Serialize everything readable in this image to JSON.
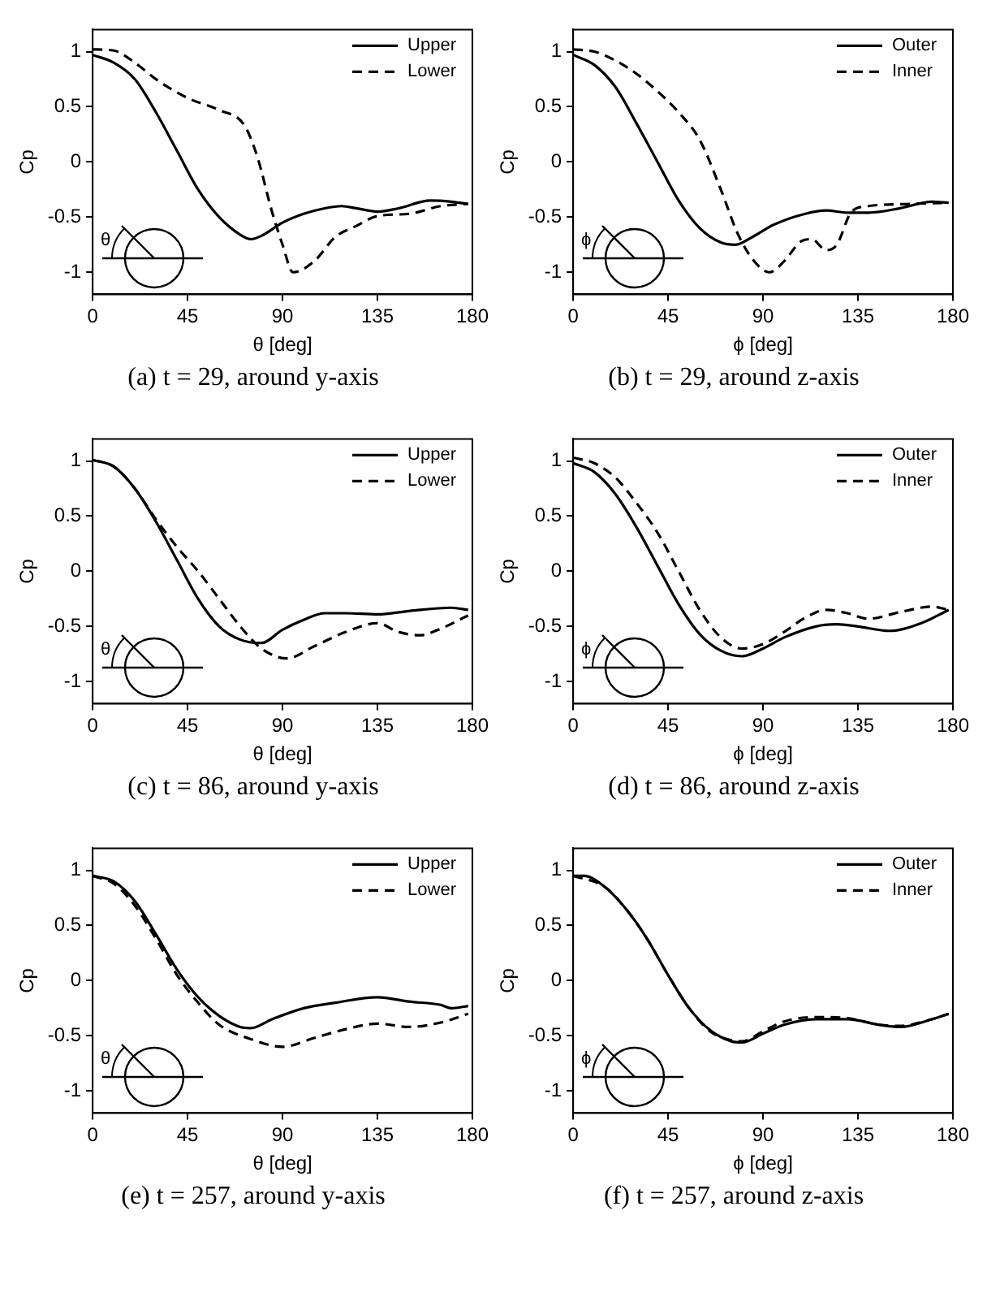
{
  "chart_data": [
    {
      "type": "line",
      "xlabel": "θ [deg]",
      "ylabel": "Cp",
      "xlim": [
        0,
        180
      ],
      "ylim": [
        -1.2,
        1.2
      ],
      "xticks": [
        0,
        45,
        90,
        135,
        180
      ],
      "yticks": [
        -1,
        -0.5,
        0,
        0.5,
        1
      ],
      "legend": "top right",
      "annotations": [
        "(a)  t = 29,  around y-axis",
        "θ"
      ],
      "series": [
        {
          "name": "Upper",
          "color": "#000000",
          "line_style": "solid",
          "x": [
            0,
            10,
            20,
            30,
            40,
            50,
            60,
            70,
            75,
            80,
            90,
            100,
            110,
            118,
            125,
            135,
            145,
            160,
            170,
            178
          ],
          "values": [
            0.97,
            0.9,
            0.75,
            0.45,
            0.1,
            -0.25,
            -0.5,
            -0.66,
            -0.7,
            -0.67,
            -0.55,
            -0.47,
            -0.42,
            -0.4,
            -0.42,
            -0.45,
            -0.42,
            -0.35,
            -0.36,
            -0.38
          ]
        },
        {
          "name": "Lower",
          "color": "#000000",
          "line_style": "dashed",
          "x": [
            0,
            10,
            20,
            30,
            45,
            60,
            72,
            78,
            85,
            90,
            95,
            105,
            115,
            125,
            135,
            150,
            165,
            178
          ],
          "values": [
            1.02,
            1.01,
            0.9,
            0.75,
            0.58,
            0.47,
            0.33,
            0.05,
            -0.45,
            -0.75,
            -1.0,
            -0.9,
            -0.68,
            -0.58,
            -0.49,
            -0.47,
            -0.4,
            -0.38
          ]
        }
      ]
    },
    {
      "type": "line",
      "xlabel": "ϕ [deg]",
      "ylabel": "Cp",
      "xlim": [
        0,
        180
      ],
      "ylim": [
        -1.2,
        1.2
      ],
      "xticks": [
        0,
        45,
        90,
        135,
        180
      ],
      "yticks": [
        -1,
        -0.5,
        0,
        0.5,
        1
      ],
      "legend": "top right",
      "annotations": [
        "(b)  t = 29,  around z-axis",
        "ϕ"
      ],
      "series": [
        {
          "name": "Outer",
          "color": "#000000",
          "line_style": "solid",
          "x": [
            0,
            10,
            20,
            30,
            40,
            50,
            60,
            70,
            77,
            85,
            95,
            110,
            120,
            130,
            140,
            155,
            170,
            178
          ],
          "values": [
            0.97,
            0.88,
            0.68,
            0.35,
            0.0,
            -0.35,
            -0.6,
            -0.73,
            -0.75,
            -0.68,
            -0.57,
            -0.47,
            -0.44,
            -0.46,
            -0.46,
            -0.42,
            -0.36,
            -0.37
          ]
        },
        {
          "name": "Inner",
          "color": "#000000",
          "line_style": "dashed",
          "x": [
            0,
            10,
            20,
            30,
            40,
            50,
            60,
            70,
            78,
            85,
            93,
            100,
            108,
            113,
            120,
            125,
            132,
            140,
            160,
            178
          ],
          "values": [
            1.02,
            1.0,
            0.92,
            0.8,
            0.64,
            0.45,
            0.2,
            -0.25,
            -0.65,
            -0.88,
            -1.0,
            -0.9,
            -0.72,
            -0.7,
            -0.8,
            -0.75,
            -0.45,
            -0.4,
            -0.38,
            -0.37
          ]
        }
      ]
    },
    {
      "type": "line",
      "xlabel": "θ [deg]",
      "ylabel": "Cp",
      "xlim": [
        0,
        180
      ],
      "ylim": [
        -1.2,
        1.2
      ],
      "xticks": [
        0,
        45,
        90,
        135,
        180
      ],
      "yticks": [
        -1,
        -0.5,
        0,
        0.5,
        1
      ],
      "legend": "top right",
      "annotations": [
        "(c)  t = 86,  around y-axis",
        "θ"
      ],
      "series": [
        {
          "name": "Upper",
          "color": "#000000",
          "line_style": "solid",
          "x": [
            0,
            10,
            20,
            30,
            40,
            50,
            60,
            70,
            80,
            90,
            100,
            110,
            120,
            135,
            150,
            170,
            178
          ],
          "values": [
            1.01,
            0.95,
            0.75,
            0.45,
            0.1,
            -0.25,
            -0.5,
            -0.62,
            -0.65,
            -0.53,
            -0.44,
            -0.38,
            -0.38,
            -0.39,
            -0.36,
            -0.33,
            -0.35
          ]
        },
        {
          "name": "Lower",
          "color": "#000000",
          "line_style": "dashed",
          "x": [
            0,
            10,
            20,
            30,
            40,
            50,
            60,
            70,
            80,
            92,
            105,
            120,
            135,
            145,
            155,
            165,
            178
          ],
          "values": [
            1.01,
            0.95,
            0.75,
            0.47,
            0.22,
            0.0,
            -0.25,
            -0.5,
            -0.7,
            -0.79,
            -0.68,
            -0.55,
            -0.47,
            -0.55,
            -0.58,
            -0.52,
            -0.4
          ]
        }
      ]
    },
    {
      "type": "line",
      "xlabel": "ϕ [deg]",
      "ylabel": "Cp",
      "xlim": [
        0,
        180
      ],
      "ylim": [
        -1.2,
        1.2
      ],
      "xticks": [
        0,
        45,
        90,
        135,
        180
      ],
      "yticks": [
        -1,
        -0.5,
        0,
        0.5,
        1
      ],
      "legend": "top right",
      "annotations": [
        "(d)  t = 86,  around z-axis",
        "ϕ"
      ],
      "series": [
        {
          "name": "Outer",
          "color": "#000000",
          "line_style": "solid",
          "x": [
            0,
            10,
            20,
            30,
            40,
            50,
            60,
            70,
            80,
            90,
            100,
            115,
            125,
            135,
            150,
            165,
            178
          ],
          "values": [
            0.98,
            0.9,
            0.7,
            0.4,
            0.05,
            -0.3,
            -0.57,
            -0.72,
            -0.77,
            -0.7,
            -0.6,
            -0.5,
            -0.48,
            -0.5,
            -0.54,
            -0.47,
            -0.35
          ]
        },
        {
          "name": "Inner",
          "color": "#000000",
          "line_style": "dashed",
          "x": [
            0,
            10,
            20,
            30,
            40,
            50,
            60,
            70,
            80,
            90,
            100,
            110,
            120,
            130,
            140,
            155,
            170,
            178
          ],
          "values": [
            1.03,
            0.98,
            0.85,
            0.62,
            0.35,
            0.0,
            -0.35,
            -0.6,
            -0.7,
            -0.66,
            -0.55,
            -0.42,
            -0.35,
            -0.38,
            -0.43,
            -0.37,
            -0.32,
            -0.35
          ]
        }
      ]
    },
    {
      "type": "line",
      "xlabel": "θ [deg]",
      "ylabel": "Cp",
      "xlim": [
        0,
        180
      ],
      "ylim": [
        -1.2,
        1.2
      ],
      "xticks": [
        0,
        45,
        90,
        135,
        180
      ],
      "yticks": [
        -1,
        -0.5,
        0,
        0.5,
        1
      ],
      "legend": "top right",
      "annotations": [
        "(e)  t = 257,  around y-axis",
        "θ"
      ],
      "series": [
        {
          "name": "Upper",
          "color": "#000000",
          "line_style": "solid",
          "x": [
            0,
            10,
            20,
            30,
            40,
            50,
            60,
            70,
            75,
            85,
            100,
            115,
            135,
            150,
            165,
            170,
            178
          ],
          "values": [
            0.95,
            0.9,
            0.72,
            0.42,
            0.1,
            -0.15,
            -0.32,
            -0.42,
            -0.43,
            -0.35,
            -0.25,
            -0.2,
            -0.15,
            -0.19,
            -0.22,
            -0.25,
            -0.23
          ]
        },
        {
          "name": "Lower",
          "color": "#000000",
          "line_style": "dashed",
          "x": [
            0,
            10,
            20,
            30,
            40,
            50,
            60,
            75,
            90,
            105,
            120,
            135,
            150,
            165,
            178
          ],
          "values": [
            0.95,
            0.88,
            0.68,
            0.38,
            0.05,
            -0.2,
            -0.4,
            -0.53,
            -0.6,
            -0.52,
            -0.44,
            -0.39,
            -0.42,
            -0.38,
            -0.3
          ]
        }
      ]
    },
    {
      "type": "line",
      "xlabel": "ϕ [deg]",
      "ylabel": "Cp",
      "xlim": [
        0,
        180
      ],
      "ylim": [
        -1.2,
        1.2
      ],
      "xticks": [
        0,
        45,
        90,
        135,
        180
      ],
      "yticks": [
        -1,
        -0.5,
        0,
        0.5,
        1
      ],
      "legend": "top right",
      "annotations": [
        "(f)  t = 257,  around z-axis",
        "ϕ"
      ],
      "series": [
        {
          "name": "Outer",
          "color": "#000000",
          "line_style": "solid",
          "x": [
            0,
            5,
            15,
            25,
            35,
            45,
            55,
            65,
            75,
            80,
            90,
            100,
            115,
            130,
            145,
            155,
            170,
            178
          ],
          "values": [
            0.95,
            0.95,
            0.85,
            0.65,
            0.38,
            0.05,
            -0.25,
            -0.45,
            -0.55,
            -0.56,
            -0.48,
            -0.4,
            -0.35,
            -0.35,
            -0.4,
            -0.42,
            -0.35,
            -0.3
          ]
        },
        {
          "name": "Inner",
          "color": "#000000",
          "line_style": "dashed",
          "x": [
            0,
            15,
            25,
            35,
            45,
            55,
            65,
            75,
            80,
            90,
            100,
            115,
            130,
            145,
            155,
            170,
            178
          ],
          "values": [
            0.95,
            0.85,
            0.65,
            0.38,
            0.05,
            -0.25,
            -0.46,
            -0.54,
            -0.55,
            -0.46,
            -0.37,
            -0.33,
            -0.34,
            -0.4,
            -0.41,
            -0.35,
            -0.3
          ]
        }
      ]
    }
  ]
}
